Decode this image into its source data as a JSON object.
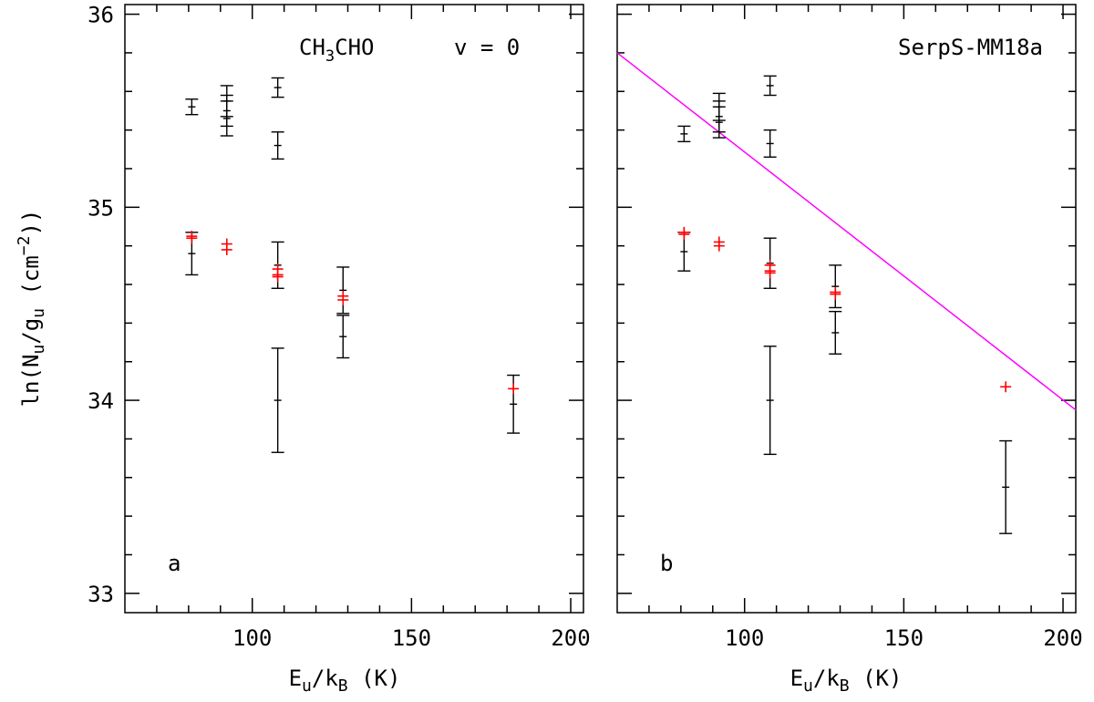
{
  "chart_data": {
    "type": "scatter",
    "ylabel": "ln(N_u/g_u (cm^-2))",
    "xlabel": "E_u/k_B (K)",
    "xlim": [
      60,
      204
    ],
    "ylim": [
      32.9,
      36.05
    ],
    "x_ticks": [
      100,
      150,
      200
    ],
    "y_ticks": [
      33,
      34,
      35,
      36
    ],
    "x_tick_labels": [
      "100",
      "150",
      "200"
    ],
    "y_tick_labels": [
      "33",
      "34",
      "35",
      "36"
    ],
    "panels": [
      {
        "letter": "a",
        "title": {
          "molecule": "CH3CHO",
          "state": "v = 0"
        },
        "observed": [
          {
            "x": 81,
            "y": 35.52,
            "err": 0.04
          },
          {
            "x": 92,
            "y": 35.55,
            "err": 0.08
          },
          {
            "x": 92,
            "y": 35.5,
            "err": 0.08
          },
          {
            "x": 92,
            "y": 35.46,
            "err": 0.09
          },
          {
            "x": 108,
            "y": 35.62,
            "err": 0.05
          },
          {
            "x": 108,
            "y": 35.32,
            "err": 0.07
          },
          {
            "x": 81,
            "y": 34.76,
            "err": 0.11
          },
          {
            "x": 108,
            "y": 34.7,
            "err": 0.12
          },
          {
            "x": 108,
            "y": 34.0,
            "err": 0.27
          },
          {
            "x": 128.5,
            "y": 34.57,
            "err": 0.12
          },
          {
            "x": 128.5,
            "y": 34.33,
            "err": 0.11
          },
          {
            "x": 182,
            "y": 33.98,
            "err": 0.15
          }
        ],
        "model": [
          {
            "x": 81,
            "y": 34.84
          },
          {
            "x": 81,
            "y": 34.85
          },
          {
            "x": 92,
            "y": 34.81
          },
          {
            "x": 92,
            "y": 34.78
          },
          {
            "x": 108,
            "y": 34.68
          },
          {
            "x": 108,
            "y": 34.65
          },
          {
            "x": 108,
            "y": 34.64
          },
          {
            "x": 128.5,
            "y": 34.54
          },
          {
            "x": 128.5,
            "y": 34.52
          },
          {
            "x": 182,
            "y": 34.06
          }
        ],
        "fit_line": null
      },
      {
        "letter": "b",
        "title": {
          "source": "SerpS-MM18a"
        },
        "observed": [
          {
            "x": 81,
            "y": 35.38,
            "err": 0.04
          },
          {
            "x": 92,
            "y": 35.52,
            "err": 0.07
          },
          {
            "x": 92,
            "y": 35.47,
            "err": 0.08
          },
          {
            "x": 92,
            "y": 35.44,
            "err": 0.08
          },
          {
            "x": 108,
            "y": 35.63,
            "err": 0.05
          },
          {
            "x": 108,
            "y": 35.33,
            "err": 0.07
          },
          {
            "x": 81,
            "y": 34.77,
            "err": 0.1
          },
          {
            "x": 108,
            "y": 34.71,
            "err": 0.13
          },
          {
            "x": 108,
            "y": 34.0,
            "err": 0.28
          },
          {
            "x": 128.5,
            "y": 34.59,
            "err": 0.11
          },
          {
            "x": 128.5,
            "y": 34.35,
            "err": 0.11
          },
          {
            "x": 182,
            "y": 33.55,
            "err": 0.24
          }
        ],
        "model": [
          {
            "x": 81,
            "y": 34.86
          },
          {
            "x": 81,
            "y": 34.87
          },
          {
            "x": 92,
            "y": 34.82
          },
          {
            "x": 92,
            "y": 34.8
          },
          {
            "x": 108,
            "y": 34.7
          },
          {
            "x": 108,
            "y": 34.67
          },
          {
            "x": 108,
            "y": 34.66
          },
          {
            "x": 128.5,
            "y": 34.56
          },
          {
            "x": 128.5,
            "y": 34.55
          },
          {
            "x": 182,
            "y": 34.07
          }
        ],
        "fit_line": {
          "x0": 60,
          "y0": 35.8,
          "x1": 204,
          "y1": 33.95
        }
      }
    ],
    "colors": {
      "observed": "#000000",
      "model": "#ff0000",
      "fit": "#ff00ff",
      "axes": "#000000"
    }
  }
}
